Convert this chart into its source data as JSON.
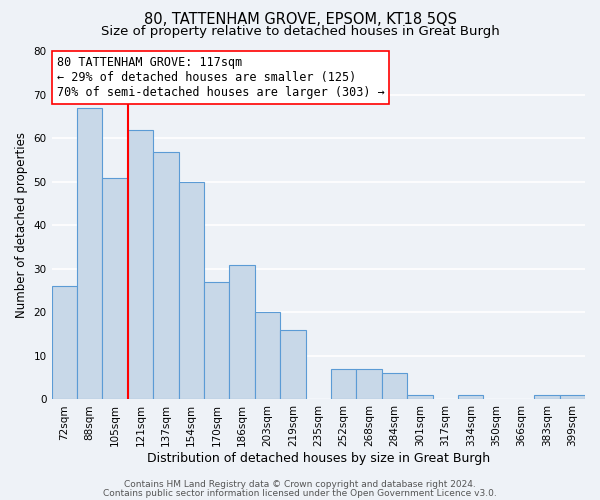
{
  "title": "80, TATTENHAM GROVE, EPSOM, KT18 5QS",
  "subtitle": "Size of property relative to detached houses in Great Burgh",
  "xlabel": "Distribution of detached houses by size in Great Burgh",
  "ylabel": "Number of detached properties",
  "footer_line1": "Contains HM Land Registry data © Crown copyright and database right 2024.",
  "footer_line2": "Contains public sector information licensed under the Open Government Licence v3.0.",
  "bin_labels": [
    "72sqm",
    "88sqm",
    "105sqm",
    "121sqm",
    "137sqm",
    "154sqm",
    "170sqm",
    "186sqm",
    "203sqm",
    "219sqm",
    "235sqm",
    "252sqm",
    "268sqm",
    "284sqm",
    "301sqm",
    "317sqm",
    "334sqm",
    "350sqm",
    "366sqm",
    "383sqm",
    "399sqm"
  ],
  "bar_values": [
    26,
    67,
    51,
    62,
    57,
    50,
    27,
    31,
    20,
    16,
    0,
    7,
    7,
    6,
    1,
    0,
    1,
    0,
    0,
    1,
    1
  ],
  "bar_color": "#c8d8e8",
  "bar_edge_color": "#5b9bd5",
  "vline_pos": 2.5,
  "vline_color": "red",
  "annot_line1": "80 TATTENHAM GROVE: 117sqm",
  "annot_line2": "← 29% of detached houses are smaller (125)",
  "annot_line3": "70% of semi-detached houses are larger (303) →",
  "annotation_box_edgecolor": "red",
  "annotation_box_facecolor": "white",
  "ylim": [
    0,
    80
  ],
  "yticks": [
    0,
    10,
    20,
    30,
    40,
    50,
    60,
    70,
    80
  ],
  "background_color": "#eef2f7",
  "grid_color": "white",
  "title_fontsize": 10.5,
  "subtitle_fontsize": 9.5,
  "xlabel_fontsize": 9,
  "ylabel_fontsize": 8.5,
  "tick_fontsize": 7.5,
  "annotation_fontsize": 8.5,
  "footer_fontsize": 6.5
}
